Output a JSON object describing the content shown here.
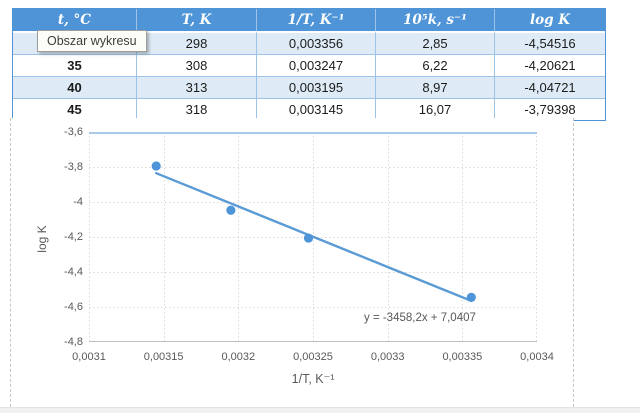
{
  "table": {
    "headers": [
      "t, °C",
      "T, K",
      "1/T, K⁻¹",
      "10⁵k, s⁻¹",
      "log K"
    ],
    "rows": [
      [
        "",
        "298",
        "0,003356",
        "2,85",
        "-4,54516"
      ],
      [
        "35",
        "308",
        "0,003247",
        "6,22",
        "-4,20621"
      ],
      [
        "40",
        "313",
        "0,003195",
        "8,97",
        "-4,04721"
      ],
      [
        "45",
        "318",
        "0,003145",
        "16,07",
        "-3,79398"
      ]
    ]
  },
  "tooltip": {
    "text": "Obszar wykresu"
  },
  "chart_data": {
    "type": "scatter",
    "x": [
      0.003145,
      0.003195,
      0.003247,
      0.003356
    ],
    "y": [
      -3.79398,
      -4.04721,
      -4.20621,
      -4.54516
    ],
    "xlabel": "1/T, K⁻¹",
    "ylabel": "log K",
    "xlim": [
      0.0031,
      0.0034
    ],
    "ylim": [
      -4.8,
      -3.6
    ],
    "x_tick_labels": [
      "0,0031",
      "0,00315",
      "0,0032",
      "0,00325",
      "0,0033",
      "0,00335",
      "0,0034"
    ],
    "y_tick_labels": [
      "-3,6",
      "-3,8",
      "-4",
      "-4,2",
      "-4,4",
      "-4,6",
      "-4,8"
    ],
    "grid": true,
    "legend": "none",
    "trendline": {
      "slope": -3458.2,
      "intercept": 7.0407,
      "x_start": 0.003145,
      "x_end": 0.003356,
      "equation_label": "y = -3458,2x + 7,0407"
    },
    "marker_color": "#4D94D8",
    "line_color": "#5B9BD5"
  },
  "colors": {
    "header_bg": "#4E94D6",
    "band_bg": "#DEEBF6",
    "cell_border": "#9DC3E6",
    "gridline": "#D9D9D9",
    "plot_top_border": "#8FB8E0",
    "axis_line": "#BFBFBF",
    "axis_text": "#595959"
  }
}
